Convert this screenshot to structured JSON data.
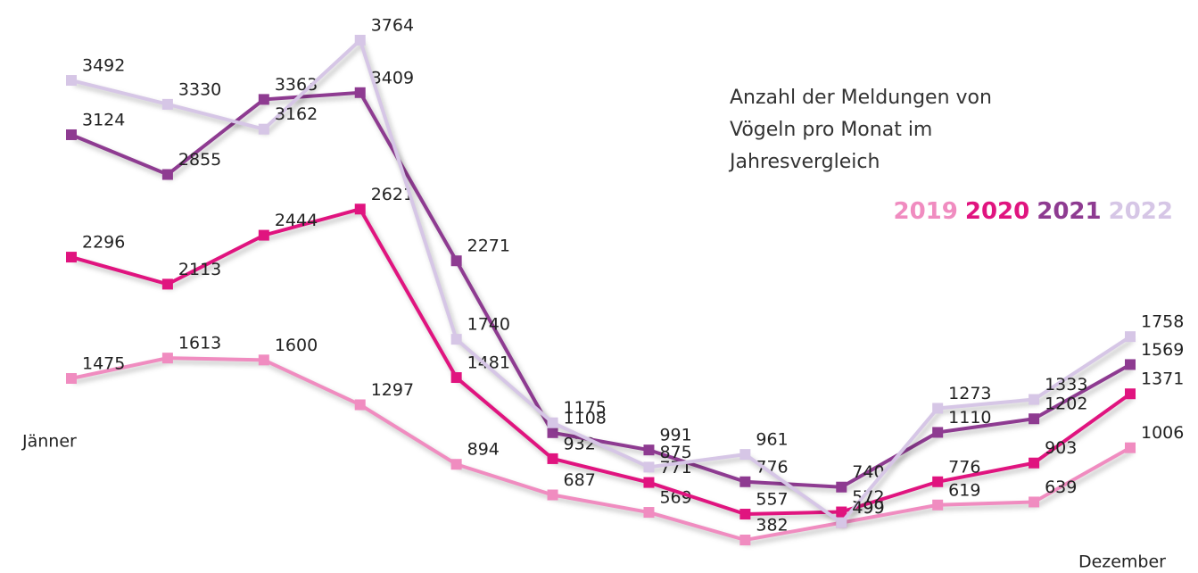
{
  "chart_data": {
    "type": "line",
    "title": "Anzahl der Meldungen von Vögeln pro Monat im Jahresvergleich",
    "categories": [
      "Jänner",
      null,
      null,
      null,
      null,
      null,
      null,
      null,
      null,
      null,
      null,
      "Dezember"
    ],
    "legend": "top-right",
    "series": [
      {
        "name": "2019",
        "color": "#f08cc0",
        "values": [
          1475,
          1613,
          1600,
          1297,
          894,
          687,
          569,
          382,
          499,
          619,
          639,
          1006
        ]
      },
      {
        "name": "2020",
        "color": "#e0147f",
        "values": [
          2296,
          2113,
          2444,
          2621,
          1481,
          932,
          771,
          557,
          572,
          776,
          903,
          1371
        ]
      },
      {
        "name": "2021",
        "color": "#8e3b91",
        "values": [
          3124,
          2855,
          3363,
          3409,
          2271,
          1108,
          991,
          776,
          740,
          1110,
          1202,
          1569
        ]
      },
      {
        "name": "2022",
        "color": "#d6c6e6",
        "values": [
          3492,
          3330,
          3162,
          3764,
          1740,
          1175,
          875,
          961,
          499,
          1273,
          1333,
          1758
        ]
      }
    ]
  }
}
